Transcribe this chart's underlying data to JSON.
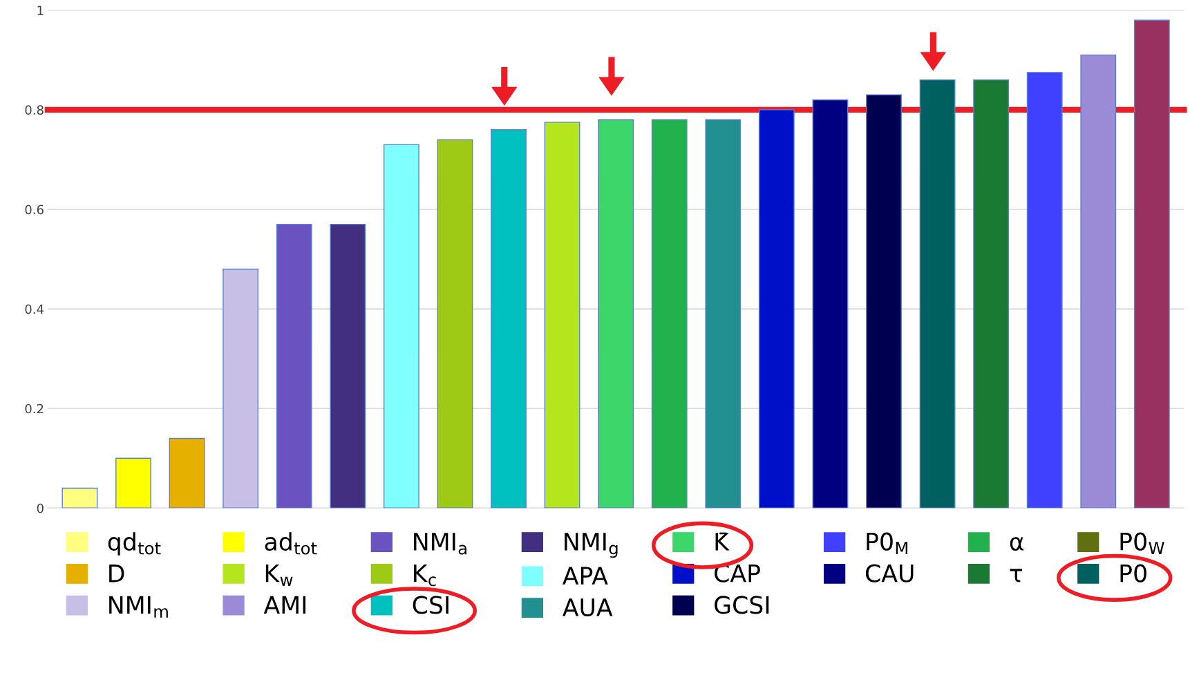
{
  "chart_data": {
    "type": "bar",
    "categories": [
      null,
      null,
      null,
      null,
      null,
      null,
      null,
      null,
      null,
      null,
      null,
      null,
      null,
      null,
      null,
      null,
      null,
      null,
      null,
      null,
      null
    ],
    "series": [
      {
        "name": "qd$_{tot}$",
        "color": "#ffff80",
        "values": [
          0.04,
          null,
          null,
          null,
          null,
          null,
          null,
          null,
          null,
          null,
          null,
          null,
          null,
          null,
          null,
          null,
          null,
          null,
          null,
          null,
          null
        ]
      },
      {
        "name": "D",
        "color": "#e6b000",
        "values": [
          null,
          null,
          0.14,
          null,
          null,
          null,
          null,
          null,
          null,
          null,
          null,
          null,
          null,
          null,
          null,
          null,
          null,
          null,
          null,
          null,
          null
        ]
      },
      {
        "name": "NMI$_{m}$",
        "color": "#c8bfe7",
        "values": [
          null,
          null,
          null,
          0.48,
          null,
          null,
          null,
          null,
          null,
          null,
          null,
          null,
          null,
          null,
          null,
          null,
          null,
          null,
          null,
          null,
          null
        ]
      },
      {
        "name": "ad$_{tot}$",
        "color": "#ffff00",
        "values": [
          null,
          0.1,
          null,
          null,
          null,
          null,
          null,
          null,
          null,
          null,
          null,
          null,
          null,
          null,
          null,
          null,
          null,
          null,
          null,
          null,
          null
        ]
      },
      {
        "name": "K$_{w}$",
        "color": "#b5e61d",
        "values": [
          null,
          null,
          null,
          null,
          null,
          null,
          null,
          null,
          null,
          0.775,
          null,
          null,
          null,
          null,
          null,
          null,
          null,
          null,
          null,
          null,
          null
        ]
      },
      {
        "name": "AMI",
        "color": "#9b8ad6",
        "values": [
          null,
          null,
          null,
          null,
          null,
          null,
          null,
          null,
          null,
          null,
          null,
          null,
          null,
          null,
          null,
          null,
          null,
          null,
          null,
          0.91,
          null
        ]
      },
      {
        "name": "NMI$_{a}$",
        "color": "#6a52c0",
        "values": [
          null,
          null,
          null,
          null,
          0.57,
          null,
          null,
          null,
          null,
          null,
          null,
          null,
          null,
          null,
          null,
          null,
          null,
          null,
          null,
          null,
          null
        ]
      },
      {
        "name": "K$_{c}$",
        "color": "#9ec915",
        "values": [
          null,
          null,
          null,
          null,
          null,
          null,
          null,
          0.74,
          null,
          null,
          null,
          null,
          null,
          null,
          null,
          null,
          null,
          null,
          null,
          null,
          null
        ]
      },
      {
        "name": "CSI",
        "color": "#00c0c0",
        "values": [
          null,
          null,
          null,
          null,
          null,
          null,
          null,
          null,
          0.76,
          null,
          null,
          null,
          null,
          null,
          null,
          null,
          null,
          null,
          null,
          null,
          null
        ]
      },
      {
        "name": "NMI$_{g}$",
        "color": "#432f80",
        "values": [
          null,
          null,
          null,
          null,
          null,
          0.57,
          null,
          null,
          null,
          null,
          null,
          null,
          null,
          null,
          null,
          null,
          null,
          null,
          null,
          null,
          null
        ]
      },
      {
        "name": "APA",
        "color": "#80ffff",
        "values": [
          null,
          null,
          null,
          null,
          null,
          null,
          0.73,
          null,
          null,
          null,
          null,
          null,
          null,
          null,
          null,
          null,
          null,
          null,
          null,
          null,
          null
        ]
      },
      {
        "name": "AUA",
        "color": "#229090",
        "values": [
          null,
          null,
          null,
          null,
          null,
          null,
          null,
          null,
          null,
          null,
          null,
          null,
          0.78,
          null,
          null,
          null,
          null,
          null,
          null,
          null,
          null
        ]
      },
      {
        "name": "K̄",
        "color": "#3cd66a",
        "values": [
          null,
          null,
          null,
          null,
          null,
          null,
          null,
          null,
          null,
          null,
          0.78,
          null,
          null,
          null,
          null,
          null,
          null,
          null,
          null,
          null,
          null
        ]
      },
      {
        "name": "CAP",
        "color": "#0010c8",
        "values": [
          null,
          null,
          null,
          null,
          null,
          null,
          null,
          null,
          null,
          null,
          null,
          null,
          null,
          0.8,
          null,
          null,
          null,
          null,
          null,
          null,
          null
        ]
      },
      {
        "name": "GCSI",
        "color": "#000050",
        "values": [
          null,
          null,
          null,
          null,
          null,
          null,
          null,
          null,
          null,
          null,
          null,
          null,
          null,
          null,
          null,
          0.83,
          null,
          null,
          null,
          null,
          null
        ]
      },
      {
        "name": "P0$_{M}$",
        "color": "#4040ff",
        "values": [
          null,
          null,
          null,
          null,
          null,
          null,
          null,
          null,
          null,
          null,
          null,
          null,
          null,
          null,
          null,
          null,
          null,
          null,
          0.875,
          null,
          null
        ]
      },
      {
        "name": "CAU",
        "color": "#000080",
        "values": [
          null,
          null,
          null,
          null,
          null,
          null,
          null,
          null,
          null,
          null,
          null,
          null,
          null,
          null,
          0.82,
          null,
          null,
          null,
          null,
          null,
          null
        ]
      },
      {
        "name": "α",
        "color": "#22b14c",
        "values": [
          null,
          null,
          null,
          null,
          null,
          null,
          null,
          null,
          null,
          null,
          null,
          0.78,
          null,
          null,
          null,
          null,
          null,
          null,
          null,
          null,
          null
        ]
      },
      {
        "name": "τ",
        "color": "#1a7a34",
        "values": [
          null,
          null,
          null,
          null,
          null,
          null,
          null,
          null,
          null,
          null,
          null,
          null,
          null,
          null,
          null,
          null,
          null,
          0.86,
          null,
          null,
          null
        ]
      },
      {
        "name": "P0$_{W}$",
        "color": "#607010",
        "values": [
          null,
          null,
          null,
          null,
          null,
          null,
          null,
          null,
          null,
          null,
          null,
          null,
          null,
          null,
          null,
          null,
          null,
          null,
          null,
          null,
          null
        ]
      },
      {
        "name": "P0",
        "color": "#006060",
        "values": [
          null,
          null,
          null,
          null,
          null,
          null,
          null,
          null,
          null,
          null,
          null,
          null,
          null,
          null,
          null,
          null,
          0.86,
          null,
          null,
          null,
          null
        ]
      },
      {
        "color": "#983060",
        "values": [
          null,
          null,
          null,
          null,
          null,
          null,
          null,
          null,
          null,
          null,
          null,
          null,
          null,
          null,
          null,
          null,
          null,
          null,
          null,
          null,
          0.98
        ]
      }
    ],
    "ylim": [
      0,
      1
    ],
    "yticks": [
      0,
      0.2,
      0.4,
      0.6,
      0.8,
      1
    ],
    "grid": "y",
    "legend": "bottom",
    "ref_lines": [
      {
        "axis": "y",
        "value": 0.8,
        "color": "#ee1c24"
      }
    ]
  }
}
